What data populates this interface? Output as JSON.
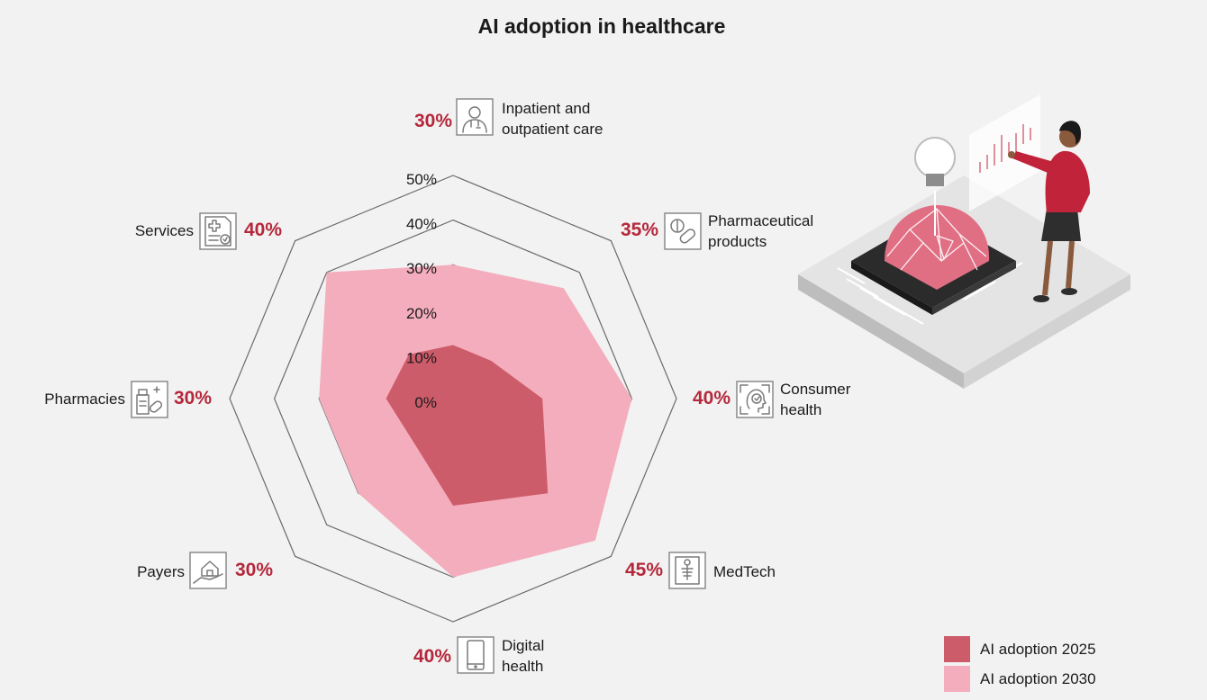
{
  "chart_data": {
    "type": "radar",
    "title": "AI adoption in healthcare",
    "radial_ticks": [
      "0%",
      "10%",
      "20%",
      "30%",
      "40%",
      "50%"
    ],
    "rlim": [
      0,
      50
    ],
    "categories": [
      {
        "label_lines": [
          "Inpatient and",
          "outpatient care"
        ],
        "value_label": "30%",
        "icon": "doctor-icon"
      },
      {
        "label_lines": [
          "Pharmaceutical",
          "products"
        ],
        "value_label": "35%",
        "icon": "pills-icon"
      },
      {
        "label_lines": [
          "Consumer",
          "health"
        ],
        "value_label": "40%",
        "icon": "face-scan-icon"
      },
      {
        "label_lines": [
          "MedTech"
        ],
        "value_label": "45%",
        "icon": "xray-icon"
      },
      {
        "label_lines": [
          "Digital",
          "health"
        ],
        "value_label": "40%",
        "icon": "smartphone-icon"
      },
      {
        "label_lines": [
          "Payers"
        ],
        "value_label": "30%",
        "icon": "hand-house-icon"
      },
      {
        "label_lines": [
          "Pharmacies"
        ],
        "value_label": "30%",
        "icon": "medicine-bottle-icon"
      },
      {
        "label_lines": [
          "Services"
        ],
        "value_label": "40%",
        "icon": "medical-document-icon"
      }
    ],
    "series": [
      {
        "name": "AI adoption 2030",
        "color": "#f4adbc",
        "values": [
          30,
          35,
          40,
          45,
          40,
          30,
          30,
          40
        ]
      },
      {
        "name": "AI adoption 2025",
        "color": "#cd5c6a",
        "values": [
          12,
          12,
          20,
          30,
          24,
          13,
          15,
          14
        ]
      }
    ],
    "legend": {
      "position": "bottom-right",
      "items": [
        "AI adoption 2025",
        "AI adoption 2030"
      ]
    },
    "grid": true
  },
  "colors": {
    "accent": "#b5283b",
    "background": "#f2f2f2"
  },
  "illustration": {
    "icon": "ai-chip-brain-illustration"
  }
}
